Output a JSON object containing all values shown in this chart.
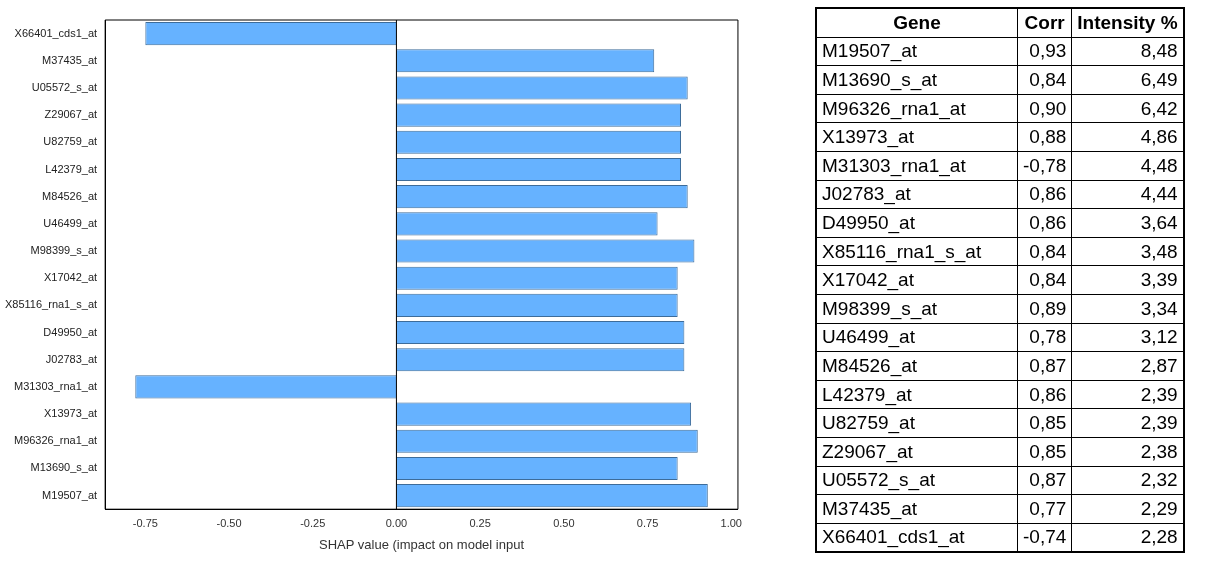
{
  "chart_data": [
    {
      "type": "bar",
      "orientation": "horizontal",
      "categories": [
        "X66401_cds1_at",
        "M37435_at",
        "U05572_s_at",
        "Z29067_at",
        "U82759_at",
        "L42379_at",
        "M84526_at",
        "U46499_at",
        "M98399_s_at",
        "X17042_at",
        "X85116_rna1_s_at",
        "D49950_at",
        "J02783_at",
        "M31303_rna1_at",
        "X13973_at",
        "M96326_rna1_at",
        "M13690_s_at",
        "M19507_at"
      ],
      "values": [
        -0.75,
        0.77,
        0.87,
        0.85,
        0.85,
        0.85,
        0.87,
        0.78,
        0.89,
        0.84,
        0.84,
        0.86,
        0.86,
        -0.78,
        0.88,
        0.9,
        0.84,
        0.93
      ],
      "color": "#66b2ff",
      "xlabel": "SHAP value (impact on model input",
      "xlim": [
        -0.87,
        1.02
      ],
      "xticks": [
        {
          "value": -0.75,
          "label": "-0.75"
        },
        {
          "value": -0.5,
          "label": "-0.50"
        },
        {
          "value": -0.25,
          "label": "-0.25"
        },
        {
          "value": 0,
          "label": "0.00"
        },
        {
          "value": 0.25,
          "label": "0.25"
        },
        {
          "value": 0.5,
          "label": "0.50"
        },
        {
          "value": 0.75,
          "label": "0.75"
        },
        {
          "value": 1,
          "label": "1.00"
        }
      ],
      "ref_lines": [
        {
          "axis": "x",
          "value": 0,
          "color": "#000000"
        }
      ],
      "grid": false,
      "legend": false
    },
    {
      "type": "other",
      "ylabel": "Gene",
      "categories": [
        "M19507_at",
        "M13690_s_at",
        "M96326_rna1_at",
        "X13973_at",
        "M31303_rna1_at",
        "J02783_at",
        "D49950_at",
        "X85116_rna1_s_at",
        "X17042_at",
        "M98399_s_at",
        "U46499_at",
        "M84526_at",
        "L42379_at",
        "U82759_at",
        "Z29067_at",
        "U05572_s_at",
        "M37435_at",
        "X66401_cds1_at"
      ],
      "series": [
        {
          "name": "Corr",
          "values": [
            0.93,
            0.84,
            0.9,
            0.88,
            -0.78,
            0.86,
            0.86,
            0.84,
            0.84,
            0.89,
            0.78,
            0.87,
            0.86,
            0.85,
            0.85,
            0.87,
            0.77,
            -0.74
          ],
          "value_labels": [
            "0,93",
            "0,84",
            "0,90",
            "0,88",
            "-0,78",
            "0,86",
            "0,86",
            "0,84",
            "0,84",
            "0,89",
            "0,78",
            "0,87",
            "0,86",
            "0,85",
            "0,85",
            "0,87",
            "0,77",
            "-0,74"
          ]
        },
        {
          "name": "Intensity %",
          "values": [
            8.48,
            6.49,
            6.42,
            4.86,
            4.48,
            4.44,
            3.64,
            3.48,
            3.39,
            3.34,
            3.12,
            2.87,
            2.39,
            2.39,
            2.38,
            2.32,
            2.29,
            2.28
          ],
          "value_labels": [
            "8,48",
            "6,49",
            "6,42",
            "4,86",
            "4,48",
            "4,44",
            "3,64",
            "3,48",
            "3,39",
            "3,34",
            "3,12",
            "2,87",
            "2,39",
            "2,39",
            "2,38",
            "2,32",
            "2,29",
            "2,28"
          ]
        }
      ]
    }
  ]
}
